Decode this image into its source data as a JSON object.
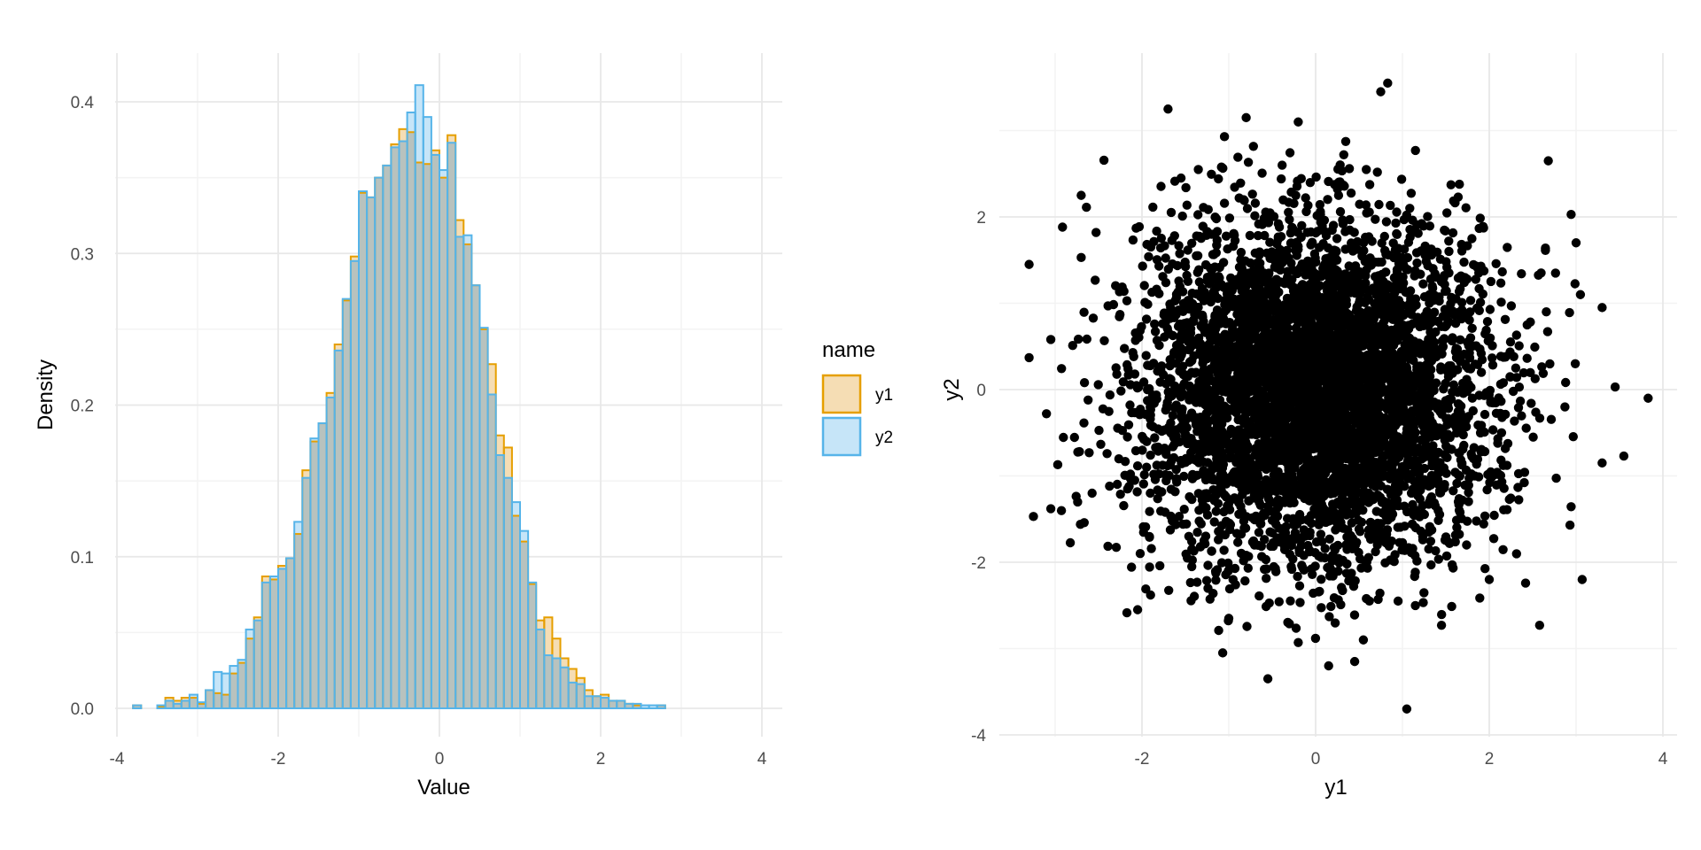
{
  "colors": {
    "y1_stroke": "#E69F00",
    "y1_fill": "#F5DDB4",
    "y2_stroke": "#56B4E9",
    "y2_fill": "#C6E5F8",
    "overlap_fill": "#B8C2BE",
    "point": "#000000",
    "grid_major": "#E8E8E8",
    "grid_minor": "#F3F3F3"
  },
  "chart_data": [
    {
      "type": "histogram",
      "xlabel": "Value",
      "ylabel": "Density",
      "xlim": [
        -4,
        4
      ],
      "ylim": [
        0,
        0.4
      ],
      "xticks": [
        "-4",
        "-2",
        "0",
        "2",
        "4"
      ],
      "yticks": [
        "0.0",
        "0.1",
        "0.2",
        "0.3",
        "0.4"
      ],
      "bin_start": -3.8,
      "bin_width": 0.1,
      "legend": {
        "title": "name",
        "placement": "right",
        "entries": [
          "y1",
          "y2"
        ]
      },
      "series": [
        {
          "name": "y1",
          "values": [
            0.002,
            0.0,
            0.0,
            0.001,
            0.007,
            0.005,
            0.007,
            0.007,
            0.003,
            0.012,
            0.01,
            0.009,
            0.023,
            0.03,
            0.046,
            0.06,
            0.087,
            0.085,
            0.094,
            0.099,
            0.115,
            0.157,
            0.176,
            0.188,
            0.208,
            0.24,
            0.269,
            0.298,
            0.34,
            0.337,
            0.35,
            0.358,
            0.372,
            0.382,
            0.38,
            0.36,
            0.359,
            0.368,
            0.35,
            0.378,
            0.322,
            0.306,
            0.279,
            0.25,
            0.227,
            0.18,
            0.172,
            0.127,
            0.11,
            0.082,
            0.058,
            0.06,
            0.046,
            0.033,
            0.026,
            0.02,
            0.012,
            0.008,
            0.009,
            0.005,
            0.005,
            0.003,
            0.002,
            0.0,
            0.0,
            0.002
          ]
        },
        {
          "name": "y2",
          "values": [
            0.002,
            0.0,
            0.0,
            0.002,
            0.005,
            0.003,
            0.005,
            0.009,
            0.004,
            0.012,
            0.024,
            0.023,
            0.028,
            0.032,
            0.052,
            0.058,
            0.083,
            0.087,
            0.092,
            0.099,
            0.123,
            0.152,
            0.178,
            0.188,
            0.205,
            0.236,
            0.27,
            0.295,
            0.341,
            0.337,
            0.35,
            0.358,
            0.37,
            0.374,
            0.393,
            0.411,
            0.39,
            0.365,
            0.355,
            0.373,
            0.311,
            0.312,
            0.279,
            0.251,
            0.207,
            0.167,
            0.152,
            0.136,
            0.117,
            0.083,
            0.052,
            0.035,
            0.033,
            0.027,
            0.017,
            0.016,
            0.008,
            0.008,
            0.007,
            0.005,
            0.005,
            0.003,
            0.003,
            0.002,
            0.002,
            0.002
          ]
        }
      ]
    },
    {
      "type": "scatter",
      "xlabel": "y1",
      "ylabel": "y2",
      "xlim": [
        -3.6,
        4.2
      ],
      "ylim": [
        -4,
        3.5
      ],
      "xticks": [
        "-2",
        "0",
        "2",
        "4"
      ],
      "yticks": [
        "-4",
        "-2",
        "0",
        "2"
      ],
      "n_points": 5000,
      "distribution": "independent standard normal",
      "outliers": [
        [
          -3.3,
          1.45
        ],
        [
          -3.3,
          0.37
        ],
        [
          -3.25,
          -1.47
        ],
        [
          -3.1,
          -0.28
        ],
        [
          -3.05,
          -1.38
        ],
        [
          -2.97,
          -0.87
        ],
        [
          -2.7,
          2.25
        ],
        [
          -2.7,
          1.53
        ],
        [
          -1.7,
          3.25
        ],
        [
          -1.07,
          -3.05
        ],
        [
          -0.8,
          3.15
        ],
        [
          -0.55,
          -3.35
        ],
        [
          -0.2,
          3.1
        ],
        [
          0.45,
          -3.15
        ],
        [
          0.75,
          3.45
        ],
        [
          0.83,
          3.55
        ],
        [
          1.05,
          -3.7
        ],
        [
          2.58,
          -2.73
        ],
        [
          2.68,
          2.65
        ],
        [
          3.07,
          -2.2
        ],
        [
          3.45,
          0.03
        ],
        [
          3.83,
          -0.1
        ],
        [
          3.55,
          -0.77
        ],
        [
          3.3,
          0.95
        ],
        [
          3.3,
          -0.85
        ],
        [
          2.93,
          -1.57
        ],
        [
          3.05,
          1.1
        ],
        [
          -1.55,
          2.45
        ],
        [
          1.45,
          -2.73
        ],
        [
          -0.2,
          -2.93
        ],
        [
          0.15,
          -3.2
        ],
        [
          1.15,
          2.77
        ],
        [
          -1.05,
          2.93
        ],
        [
          2.0,
          -2.2
        ],
        [
          -2.05,
          -2.55
        ],
        [
          -1.0,
          -2.65
        ],
        [
          0.55,
          -2.9
        ],
        [
          0.95,
          -2.45
        ],
        [
          -3.05,
          0.58
        ],
        [
          3.0,
          1.7
        ]
      ]
    }
  ]
}
